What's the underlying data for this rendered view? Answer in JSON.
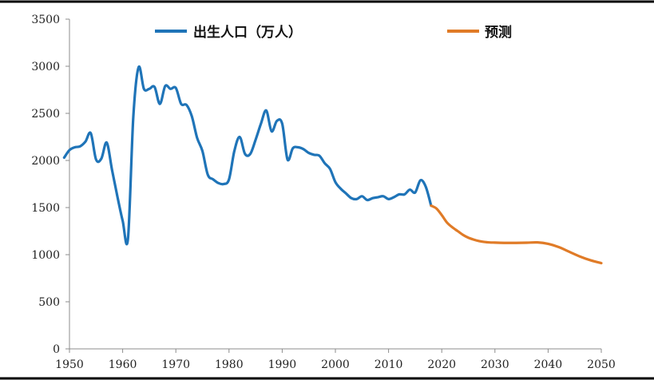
{
  "chart_data": {
    "type": "line",
    "title": "",
    "xlabel": "",
    "ylabel": "",
    "xlim": [
      1950,
      2050
    ],
    "ylim": [
      0,
      3500
    ],
    "x_ticks": [
      1950,
      1960,
      1970,
      1980,
      1990,
      2000,
      2010,
      2020,
      2030,
      2040,
      2050
    ],
    "y_ticks": [
      0,
      500,
      1000,
      1500,
      2000,
      2500,
      3000,
      3500
    ],
    "x_tick_labels": [
      "1950",
      "1960",
      "1970",
      "1980",
      "1990",
      "2000",
      "2010",
      "2020",
      "2030",
      "2040",
      "2050"
    ],
    "y_tick_labels": [
      "0",
      "500",
      "1000",
      "1500",
      "2000",
      "2500",
      "3000",
      "3500"
    ],
    "grid": false,
    "legend_position": "top",
    "colors": {
      "actual": "#1f74b8",
      "forecast": "#e07b27",
      "frame": "#000000",
      "axis": "#8c8c8c"
    },
    "series": [
      {
        "name": "出生人口（万人）",
        "x": [
          1949,
          1950,
          1951,
          1952,
          1953,
          1954,
          1955,
          1956,
          1957,
          1958,
          1959,
          1960,
          1961,
          1962,
          1963,
          1964,
          1965,
          1966,
          1967,
          1968,
          1969,
          1970,
          1971,
          1972,
          1973,
          1974,
          1975,
          1976,
          1977,
          1978,
          1979,
          1980,
          1981,
          1982,
          1983,
          1984,
          1985,
          1986,
          1987,
          1988,
          1989,
          1990,
          1991,
          1992,
          1993,
          1994,
          1995,
          1996,
          1997,
          1998,
          1999,
          2000,
          2001,
          2002,
          2003,
          2004,
          2005,
          2006,
          2007,
          2008,
          2009,
          2010,
          2011,
          2012,
          2013,
          2014,
          2015,
          2016,
          2017,
          2018
        ],
        "values": [
          2030,
          2110,
          2140,
          2150,
          2200,
          2290,
          2010,
          2020,
          2190,
          1900,
          1620,
          1360,
          1170,
          2460,
          2990,
          2760,
          2760,
          2780,
          2600,
          2790,
          2760,
          2770,
          2600,
          2590,
          2470,
          2240,
          2100,
          1850,
          1800,
          1760,
          1750,
          1800,
          2100,
          2250,
          2070,
          2070,
          2220,
          2390,
          2530,
          2310,
          2420,
          2390,
          2010,
          2130,
          2140,
          2120,
          2080,
          2060,
          2050,
          1970,
          1910,
          1770,
          1700,
          1650,
          1600,
          1590,
          1620,
          1580,
          1600,
          1610,
          1620,
          1590,
          1610,
          1640,
          1640,
          1690,
          1660,
          1790,
          1720,
          1520
        ]
      },
      {
        "name": "预测",
        "x": [
          2018,
          2019,
          2020,
          2021,
          2022,
          2023,
          2024,
          2025,
          2026,
          2027,
          2028,
          2029,
          2030,
          2032,
          2034,
          2036,
          2038,
          2040,
          2042,
          2044,
          2046,
          2048,
          2050
        ],
        "values": [
          1520,
          1490,
          1420,
          1340,
          1290,
          1250,
          1210,
          1180,
          1160,
          1145,
          1135,
          1130,
          1128,
          1125,
          1125,
          1127,
          1130,
          1115,
          1080,
          1030,
          980,
          940,
          910
        ]
      }
    ]
  }
}
